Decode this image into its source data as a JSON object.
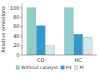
{
  "chart_data": {
    "type": "bar",
    "categories": [
      "CO",
      "HC"
    ],
    "series": [
      {
        "name": "Without catalyst",
        "color": "#8ecfcc",
        "values": [
          100,
          100
        ]
      },
      {
        "name": "Pd",
        "color": "#3399cc",
        "values": [
          62,
          44
        ]
      },
      {
        "name": "Pt",
        "color": "#d0e8ec",
        "values": [
          20,
          38
        ]
      }
    ],
    "ylabel": "Relative emissions",
    "ylim": [
      0,
      108
    ],
    "yticks": [
      0,
      20,
      40,
      60,
      80,
      100
    ],
    "grid": false,
    "legend": "bottom"
  }
}
